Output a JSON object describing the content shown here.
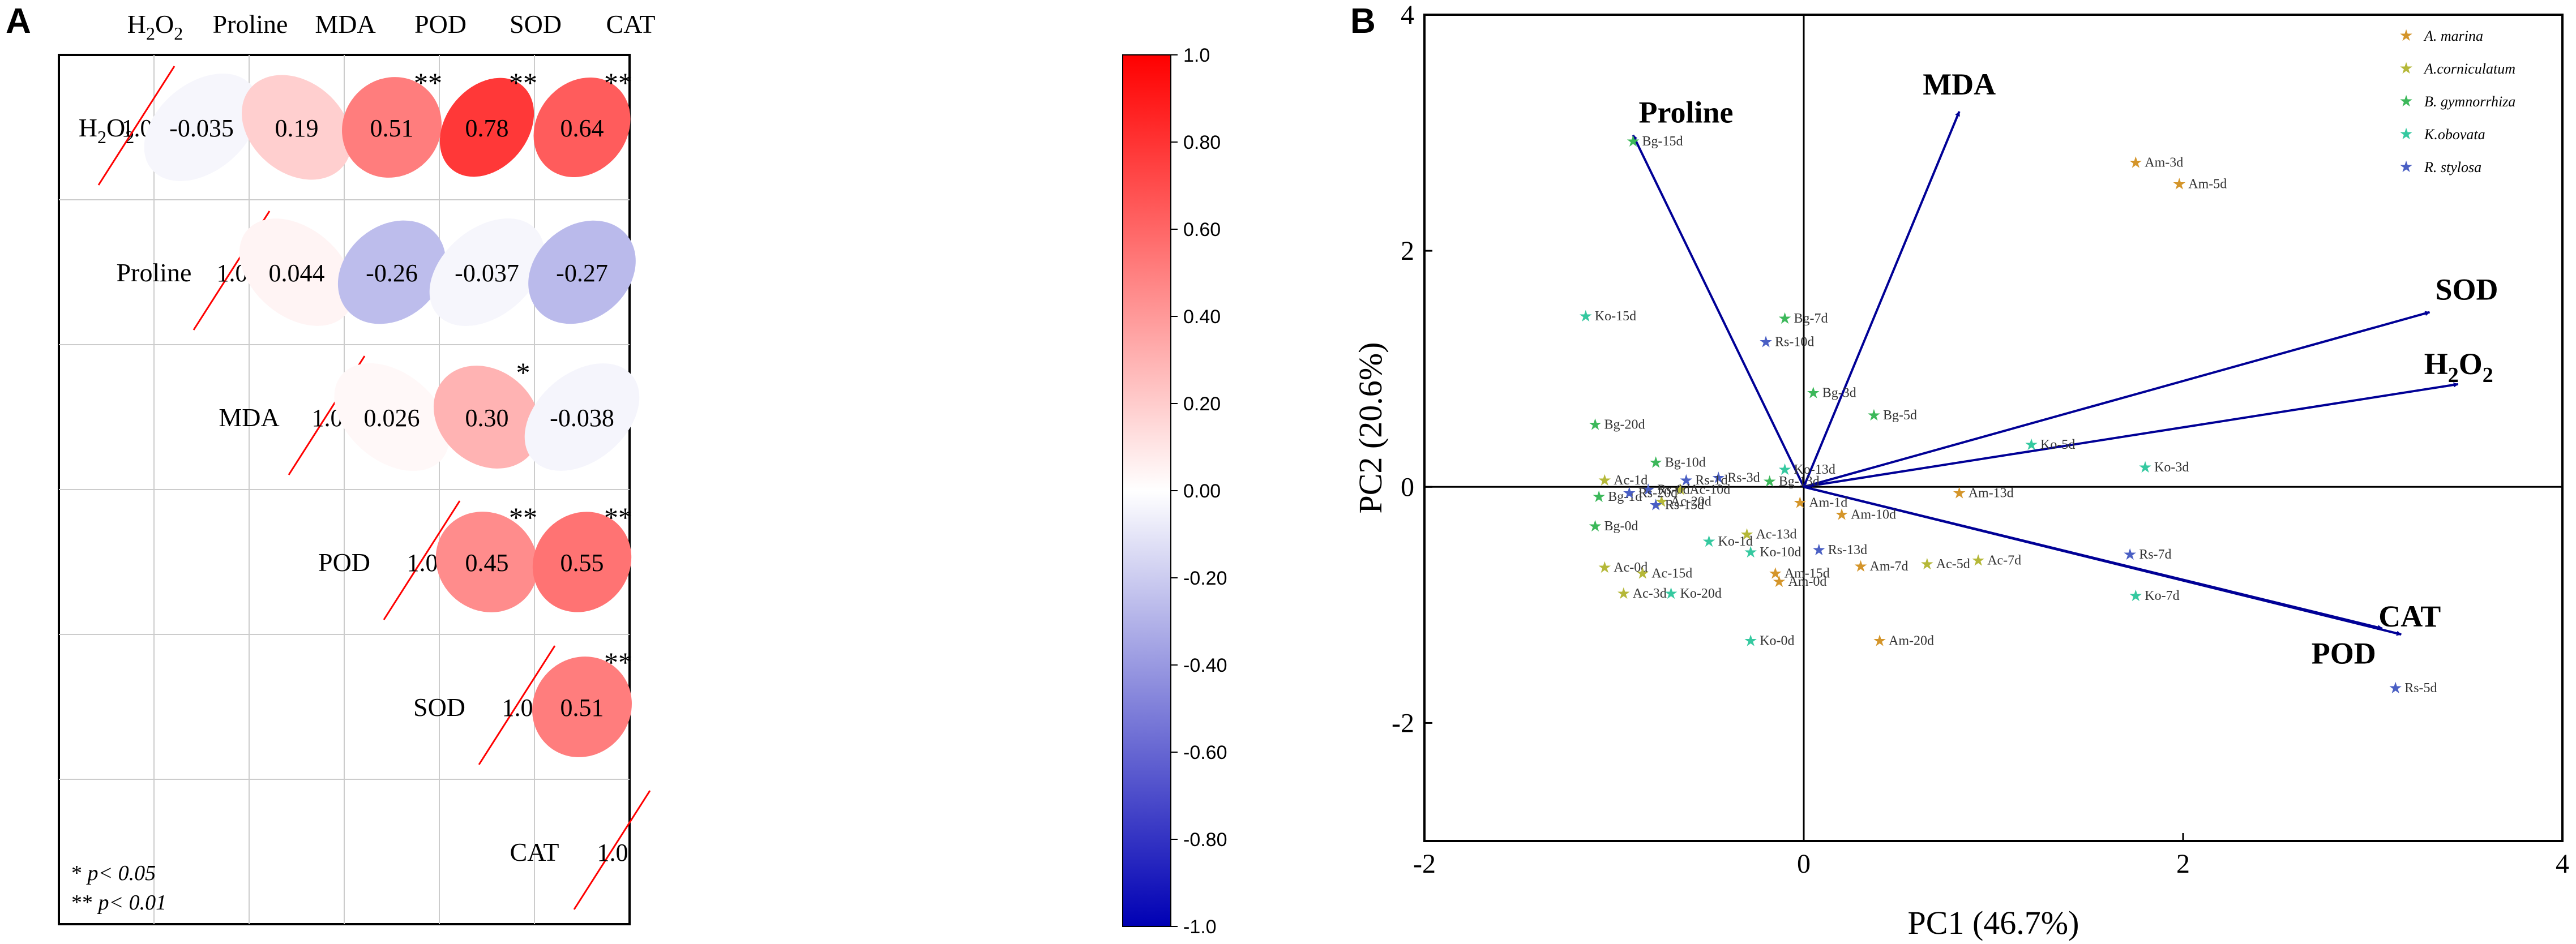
{
  "panel_labels": {
    "a": "A",
    "b": "B"
  },
  "chart_data": [
    {
      "type": "heatmap",
      "title": "",
      "variables": [
        "H2O2",
        "Proline",
        "MDA",
        "POD",
        "SOD",
        "CAT"
      ],
      "variable_labels": [
        {
          "main": "H",
          "sub1": "2",
          "mid": "O",
          "sub2": "2"
        },
        {
          "main": "Proline"
        },
        {
          "main": "MDA"
        },
        {
          "main": "POD"
        },
        {
          "main": "SOD"
        },
        {
          "main": "CAT"
        }
      ],
      "correlations": [
        {
          "row": 0,
          "col": 1,
          "value": -0.035,
          "label": "-0.035",
          "sig": ""
        },
        {
          "row": 0,
          "col": 2,
          "value": 0.19,
          "label": "0.19",
          "sig": ""
        },
        {
          "row": 0,
          "col": 3,
          "value": 0.51,
          "label": "0.51",
          "sig": "**"
        },
        {
          "row": 0,
          "col": 4,
          "value": 0.78,
          "label": "0.78",
          "sig": "**"
        },
        {
          "row": 0,
          "col": 5,
          "value": 0.64,
          "label": "0.64",
          "sig": "**"
        },
        {
          "row": 1,
          "col": 2,
          "value": 0.044,
          "label": "0.044",
          "sig": ""
        },
        {
          "row": 1,
          "col": 3,
          "value": -0.26,
          "label": "-0.26",
          "sig": ""
        },
        {
          "row": 1,
          "col": 4,
          "value": -0.037,
          "label": "-0.037",
          "sig": ""
        },
        {
          "row": 1,
          "col": 5,
          "value": -0.27,
          "label": "-0.27",
          "sig": ""
        },
        {
          "row": 2,
          "col": 3,
          "value": 0.026,
          "label": "0.026",
          "sig": ""
        },
        {
          "row": 2,
          "col": 4,
          "value": 0.3,
          "label": "0.30",
          "sig": "*"
        },
        {
          "row": 2,
          "col": 5,
          "value": -0.038,
          "label": "-0.038",
          "sig": ""
        },
        {
          "row": 3,
          "col": 4,
          "value": 0.45,
          "label": "0.45",
          "sig": "**"
        },
        {
          "row": 3,
          "col": 5,
          "value": 0.55,
          "label": "0.55",
          "sig": "**"
        },
        {
          "row": 4,
          "col": 5,
          "value": 0.51,
          "label": "0.51",
          "sig": "**"
        }
      ],
      "diagonal_label": "1.0",
      "colorbar": {
        "range": [
          -1.0,
          1.0
        ],
        "ticks": [
          "1.0",
          "0.80",
          "0.60",
          "0.40",
          "0.20",
          "0.00",
          "-0.20",
          "-0.40",
          "-0.60",
          "-0.80",
          "-1.0"
        ],
        "colors": {
          "high": "#ff0000",
          "mid": "#ffffff",
          "low": "#0000b4"
        }
      },
      "notes": [
        {
          "symbol": "*",
          "text": "p< 0.05"
        },
        {
          "symbol": "**",
          "text": "p< 0.01"
        }
      ]
    },
    {
      "type": "scatter",
      "title": "",
      "xlabel": "PC1 (46.7%)",
      "ylabel": "PC2 (20.6%)",
      "xlim": [
        -2,
        4
      ],
      "ylim": [
        -3,
        4
      ],
      "xticks": [
        -2,
        0,
        2,
        4
      ],
      "yticks": [
        -2,
        0,
        2,
        4
      ],
      "legend_position": "top-right",
      "vector_color": "#000096",
      "vectors": [
        {
          "name": "Proline",
          "x": -0.9,
          "y": 2.98
        },
        {
          "name": "MDA",
          "x": 0.82,
          "y": 3.18
        },
        {
          "name": "SOD",
          "x": 3.3,
          "y": 1.48
        },
        {
          "name": "H2O2",
          "x": 3.45,
          "y": 0.87,
          "display": {
            "main": "H",
            "sub": "2",
            "rest": "O",
            "sub2": "2"
          }
        },
        {
          "name": "CAT",
          "x": 3.15,
          "y": -1.25
        },
        {
          "name": "POD",
          "x": 3.05,
          "y": -1.2
        }
      ],
      "series": [
        {
          "name": "A. marina",
          "color": "#d4952a",
          "points": [
            {
              "label": "Am-3d",
              "x": 1.75,
              "y": 2.75
            },
            {
              "label": "Am-5d",
              "x": 1.98,
              "y": 2.57
            },
            {
              "label": "Am-13d",
              "x": 0.82,
              "y": -0.05
            },
            {
              "label": "Am-1d",
              "x": -0.02,
              "y": -0.13
            },
            {
              "label": "Am-10d",
              "x": 0.2,
              "y": -0.23
            },
            {
              "label": "Am-7d",
              "x": 0.3,
              "y": -0.67
            },
            {
              "label": "Am-15d",
              "x": -0.15,
              "y": -0.73
            },
            {
              "label": "Am-0d",
              "x": -0.13,
              "y": -0.8
            },
            {
              "label": "Am-20d",
              "x": 0.4,
              "y": -1.3
            }
          ]
        },
        {
          "name": "A.corniculatum",
          "color": "#b5b838",
          "points": [
            {
              "label": "Ac-1d",
              "x": -1.05,
              "y": 0.06
            },
            {
              "label": "Ac-10d",
              "x": -0.65,
              "y": -0.02
            },
            {
              "label": "Ac-20d",
              "x": -0.75,
              "y": -0.12
            },
            {
              "label": "Ac-13d",
              "x": -0.3,
              "y": -0.4
            },
            {
              "label": "Ac-5d",
              "x": 0.65,
              "y": -0.65
            },
            {
              "label": "Ac-7d",
              "x": 0.92,
              "y": -0.62
            },
            {
              "label": "Ac-0d",
              "x": -1.05,
              "y": -0.68
            },
            {
              "label": "Ac-15d",
              "x": -0.85,
              "y": -0.73
            },
            {
              "label": "Ac-3d",
              "x": -0.95,
              "y": -0.9
            }
          ]
        },
        {
          "name": "B. gymnorrhiza",
          "color": "#3cb85a",
          "points": [
            {
              "label": "Bg-15d",
              "x": -0.9,
              "y": 2.93
            },
            {
              "label": "Bg-7d",
              "x": -0.1,
              "y": 1.43
            },
            {
              "label": "Bg-3d",
              "x": 0.05,
              "y": 0.8
            },
            {
              "label": "Bg-5d",
              "x": 0.37,
              "y": 0.61
            },
            {
              "label": "Bg-20d",
              "x": -1.1,
              "y": 0.53
            },
            {
              "label": "Bg-10d",
              "x": -0.78,
              "y": 0.21
            },
            {
              "label": "Bg-1d",
              "x": -1.08,
              "y": -0.08
            },
            {
              "label": "Bg-13d",
              "x": -0.18,
              "y": 0.05
            },
            {
              "label": "Bg-0d",
              "x": -1.1,
              "y": -0.33
            }
          ]
        },
        {
          "name": "K.obovata",
          "color": "#35c9a0",
          "points": [
            {
              "label": "Ko-15d",
              "x": -1.15,
              "y": 1.45
            },
            {
              "label": "Ko-13d",
              "x": -0.1,
              "y": 0.15
            },
            {
              "label": "Ko-5d",
              "x": 1.2,
              "y": 0.36
            },
            {
              "label": "Ko-3d",
              "x": 1.8,
              "y": 0.17
            },
            {
              "label": "Ko-1d",
              "x": -0.5,
              "y": -0.46
            },
            {
              "label": "Ko-10d",
              "x": -0.28,
              "y": -0.55
            },
            {
              "label": "Ko-20d",
              "x": -0.7,
              "y": -0.9
            },
            {
              "label": "Ko-7d",
              "x": 1.75,
              "y": -0.92
            },
            {
              "label": "Ko-0d",
              "x": -0.28,
              "y": -1.3
            }
          ]
        },
        {
          "name": "R. stylosa",
          "color": "#4a5fc4",
          "points": [
            {
              "label": "Rs-10d",
              "x": -0.2,
              "y": 1.23
            },
            {
              "label": "Rs-3d",
              "x": -0.45,
              "y": 0.08
            },
            {
              "label": "Rs-1d",
              "x": -0.62,
              "y": 0.06
            },
            {
              "label": "Rs-0d",
              "x": -0.82,
              "y": -0.02
            },
            {
              "label": "Rs-20d",
              "x": -0.92,
              "y": -0.05
            },
            {
              "label": "Rs-15d",
              "x": -0.78,
              "y": -0.15
            },
            {
              "label": "Rs-13d",
              "x": 0.08,
              "y": -0.53
            },
            {
              "label": "Rs-7d",
              "x": 1.72,
              "y": -0.57
            },
            {
              "label": "Rs-5d",
              "x": 3.12,
              "y": -1.7
            }
          ]
        }
      ]
    }
  ]
}
